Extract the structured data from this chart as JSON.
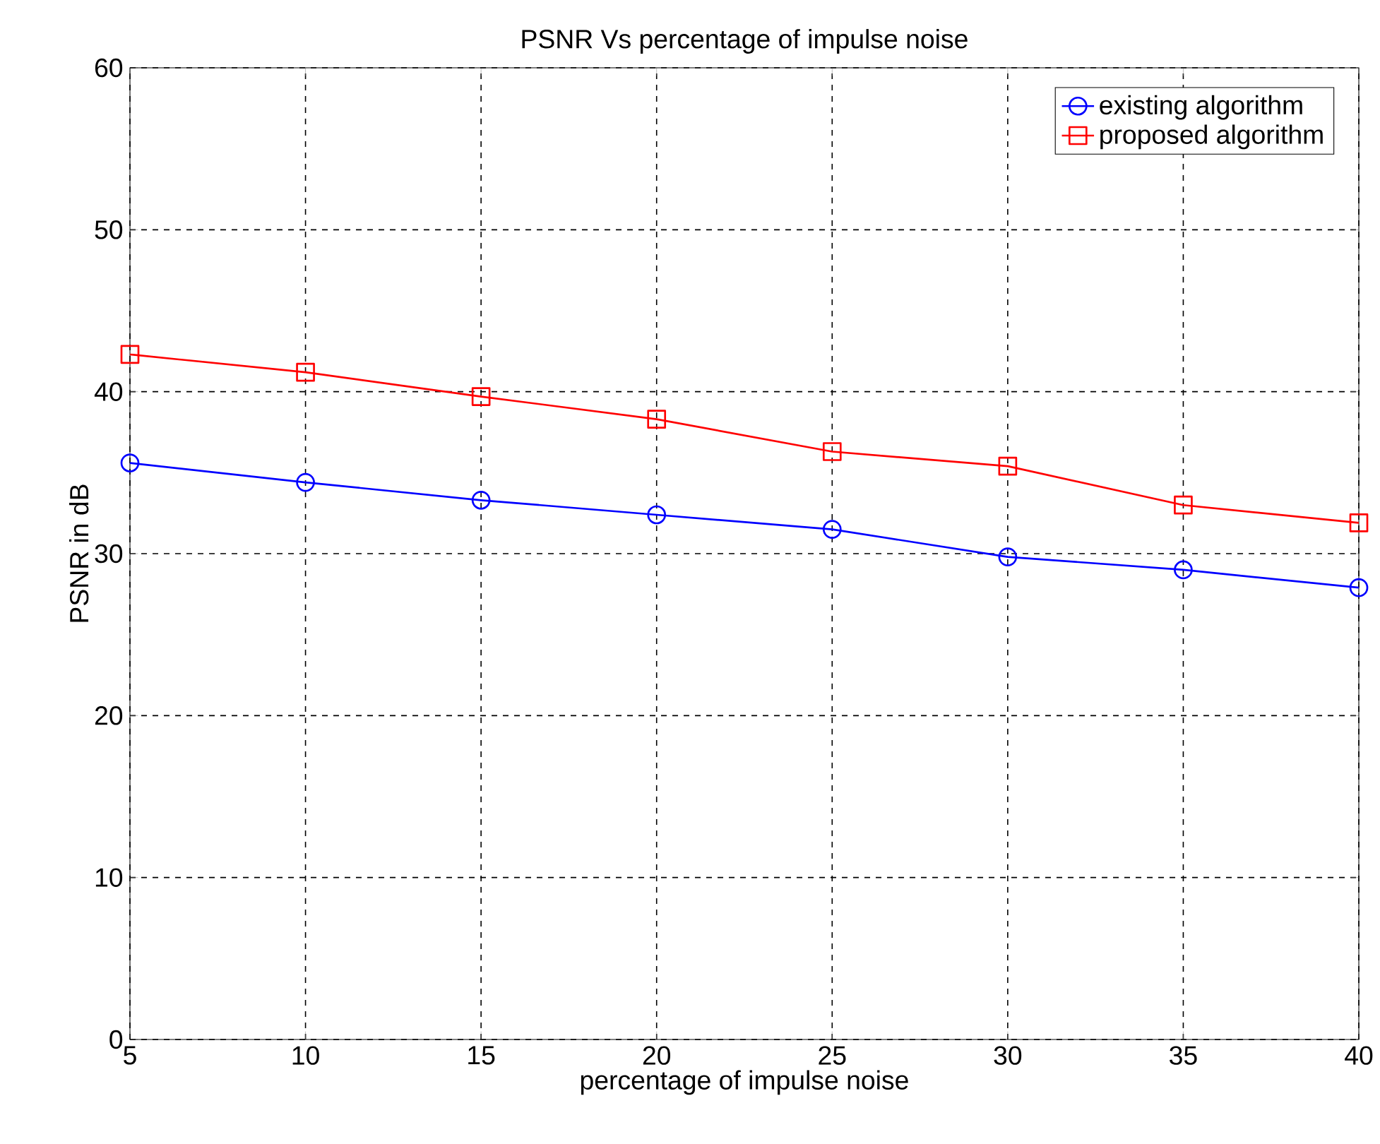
{
  "chart_data": {
    "type": "line",
    "title": "PSNR Vs percentage of impulse noise",
    "xlabel": "percentage of impulse noise",
    "ylabel": "PSNR in dB",
    "x": [
      5,
      10,
      15,
      20,
      25,
      30,
      35,
      40
    ],
    "series": [
      {
        "name": "existing algorithm",
        "color": "#0000ff",
        "marker": "circle",
        "values": [
          35.6,
          34.4,
          33.3,
          32.4,
          31.5,
          29.8,
          29.0,
          27.9
        ]
      },
      {
        "name": "proposed algorithm",
        "color": "#ff0000",
        "marker": "square",
        "values": [
          42.3,
          41.2,
          39.7,
          38.3,
          36.3,
          35.4,
          33.0,
          31.9
        ]
      }
    ],
    "xlim": [
      5,
      40
    ],
    "ylim": [
      0,
      60
    ],
    "xticks": [
      5,
      10,
      15,
      20,
      25,
      30,
      35,
      40
    ],
    "yticks": [
      0,
      10,
      20,
      30,
      40,
      50,
      60
    ],
    "grid": true,
    "legend": "top right",
    "line_style": "solid"
  }
}
